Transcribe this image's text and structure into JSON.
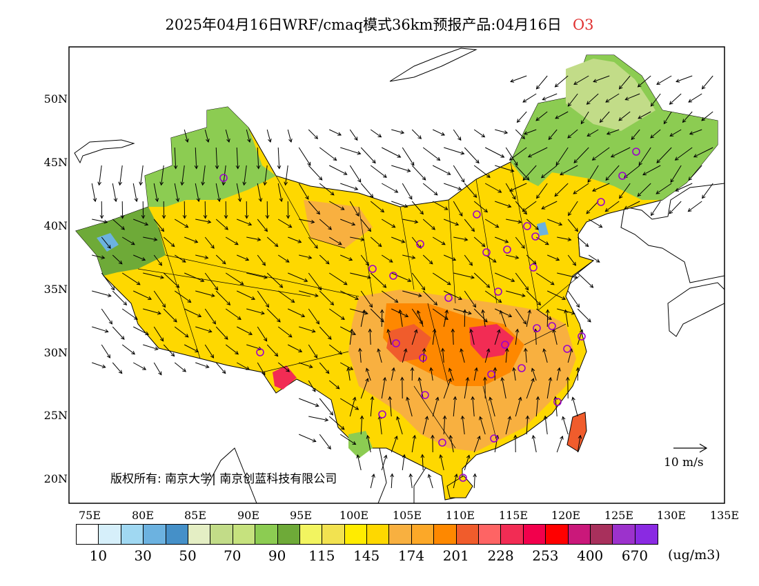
{
  "title": "2025年04月16日WRF/cmaq模式36km预报产品:04月16日",
  "species": "O3",
  "map": {
    "lat_ticks": [
      "50N",
      "45N",
      "40N",
      "35N",
      "30N",
      "25N",
      "20N"
    ],
    "lon_ticks": [
      "75E",
      "80E",
      "85E",
      "90E",
      "95E",
      "100E",
      "105E",
      "110E",
      "115E",
      "120E",
      "125E",
      "130E",
      "135E"
    ],
    "copyright": "版权所有: 南京大学| 南京创蓝科技有限公司",
    "wind_scale_label": "10 m/s"
  },
  "legend": {
    "colors": [
      "#ffffff",
      "#d6effa",
      "#a0d8f2",
      "#6cb2e0",
      "#4590c8",
      "#e4eec4",
      "#c2dc88",
      "#c6e27e",
      "#8ccc52",
      "#6eaa38",
      "#f2f460",
      "#f2e250",
      "#ffec00",
      "#fed800",
      "#f8b040",
      "#fca828",
      "#fe8800",
      "#f05c2c",
      "#fe6464",
      "#f22c54",
      "#f2004c",
      "#ff0000",
      "#ca187a",
      "#a8305c",
      "#9c32cc",
      "#8a2ae2"
    ],
    "labels": [
      "10",
      "30",
      "50",
      "70",
      "90",
      "115",
      "145",
      "174",
      "201",
      "228",
      "253",
      "400",
      "670"
    ],
    "unit": "(ug/m3)"
  }
}
